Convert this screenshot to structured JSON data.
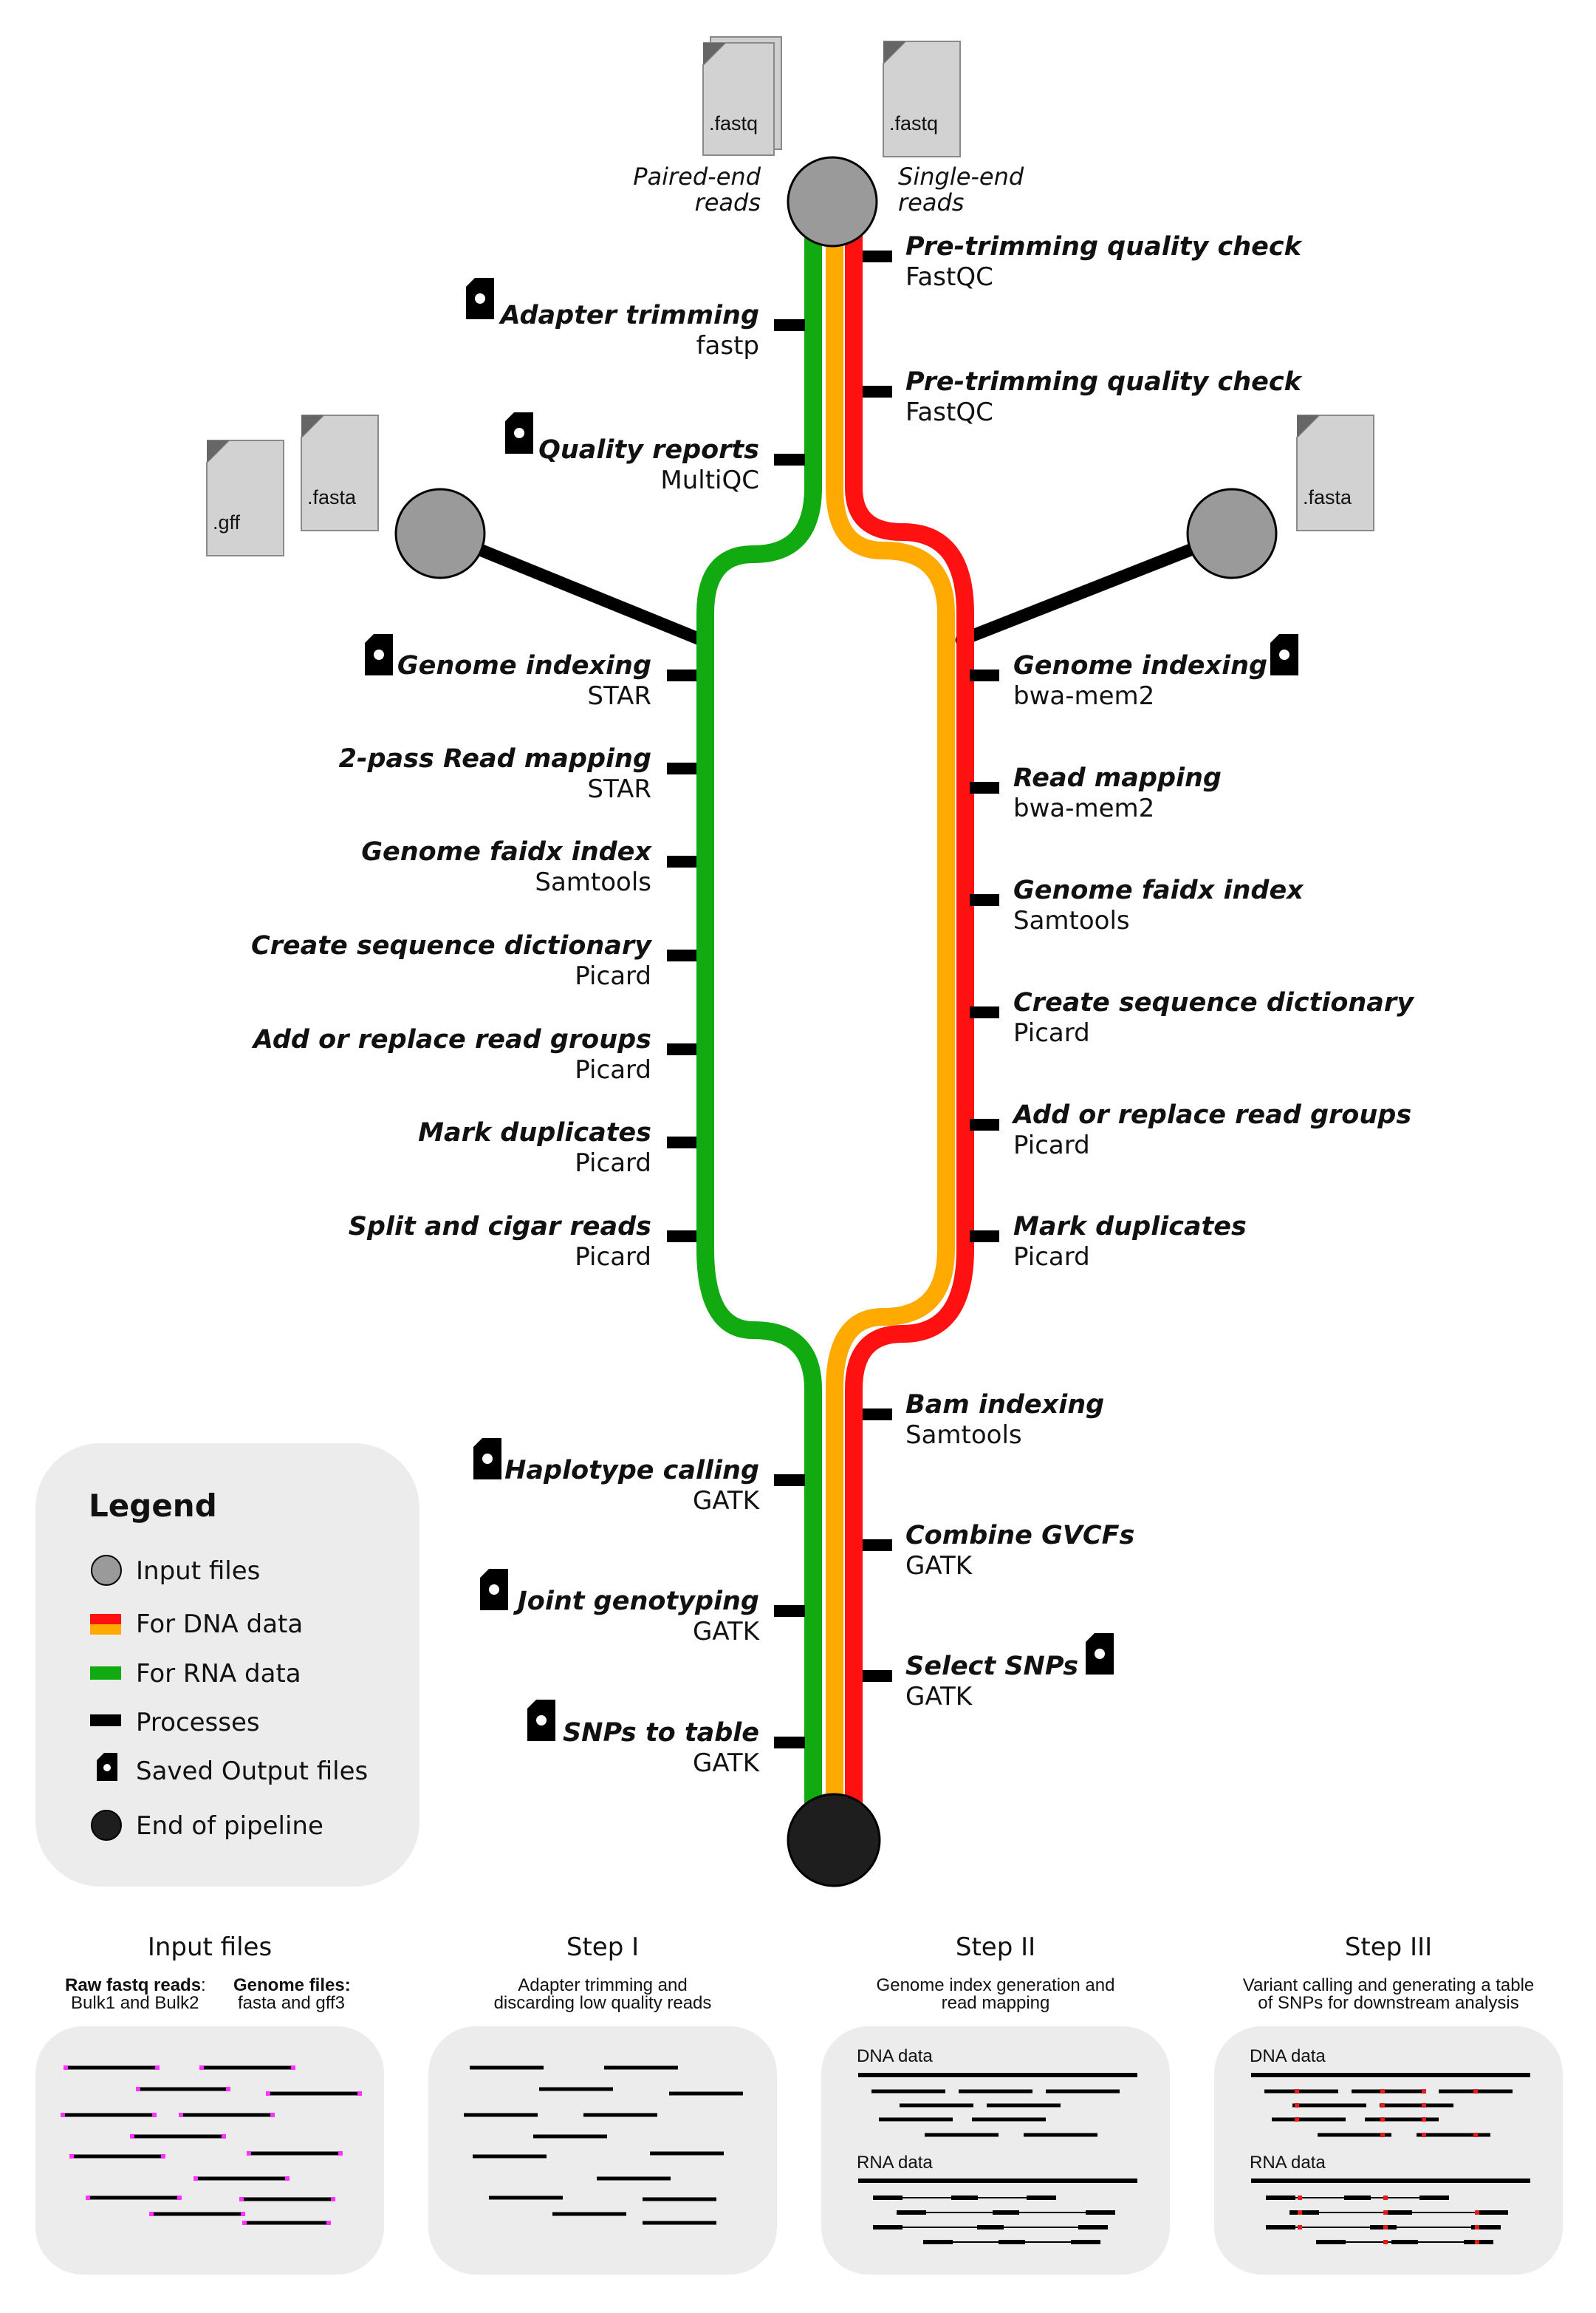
{
  "colors": {
    "dna_outer": "#ff1111",
    "dna_inner": "#ffaa00",
    "rna": "#11aa11",
    "process": "#000000",
    "input_node": "#9a9a9a",
    "end_node": "#1e1e1e",
    "panel_bg": "#ececec"
  },
  "inputs": {
    "paired_file": ".fastq",
    "single_file": ".fastq",
    "paired_label": [
      "Paired-end",
      "reads"
    ],
    "single_label": [
      "Single-end",
      "reads"
    ],
    "gff_file": ".gff",
    "fasta_left_file": ".fasta",
    "fasta_right_file": ".fasta"
  },
  "steps": {
    "trunk_right": [
      {
        "name": "Pre-trimming quality check",
        "tool": "FastQC"
      },
      {
        "name": "Pre-trimming quality check",
        "tool": "FastQC"
      }
    ],
    "trunk_left": [
      {
        "name": "Adapter trimming",
        "tool": "fastp",
        "saved": true
      },
      {
        "name": "Quality reports",
        "tool": "MultiQC",
        "saved": true
      }
    ],
    "rna_branch": [
      {
        "name": "Genome indexing",
        "tool": "STAR",
        "saved": true
      },
      {
        "name": "2-pass Read mapping",
        "tool": "STAR"
      },
      {
        "name": "Genome faidx index",
        "tool": "Samtools"
      },
      {
        "name": "Create sequence dictionary",
        "tool": "Picard"
      },
      {
        "name": "Add or replace read groups",
        "tool": "Picard"
      },
      {
        "name": "Mark duplicates",
        "tool": "Picard"
      },
      {
        "name": "Split and cigar reads",
        "tool": "Picard"
      }
    ],
    "dna_branch": [
      {
        "name": "Genome indexing",
        "tool": "bwa-mem2",
        "saved": true
      },
      {
        "name": "Read mapping",
        "tool": "bwa-mem2"
      },
      {
        "name": "Genome faidx index",
        "tool": "Samtools"
      },
      {
        "name": "Create sequence dictionary",
        "tool": "Picard"
      },
      {
        "name": "Add or replace read groups",
        "tool": "Picard"
      },
      {
        "name": "Mark duplicates",
        "tool": "Picard"
      }
    ],
    "bottom_right": [
      {
        "name": "Bam indexing",
        "tool": "Samtools"
      },
      {
        "name": "Combine GVCFs",
        "tool": "GATK"
      },
      {
        "name": "Select SNPs",
        "tool": "GATK",
        "saved": true
      }
    ],
    "bottom_left": [
      {
        "name": "Haplotype calling",
        "tool": "GATK",
        "saved": true
      },
      {
        "name": "Joint genotyping",
        "tool": "GATK",
        "saved": true
      },
      {
        "name": "SNPs to table",
        "tool": "GATK",
        "saved": true
      }
    ]
  },
  "legend": {
    "title": "Legend",
    "items": [
      {
        "icon": "input-node",
        "label": "Input files"
      },
      {
        "icon": "dna-swatch",
        "label": "For DNA data"
      },
      {
        "icon": "rna-swatch",
        "label": "For RNA data"
      },
      {
        "icon": "process-bar",
        "label": "Processes"
      },
      {
        "icon": "saved-file",
        "label": "Saved Output files"
      },
      {
        "icon": "end-node",
        "label": "End of pipeline"
      }
    ]
  },
  "panels": [
    {
      "title": "Input files",
      "cols": [
        {
          "head": "Raw fastq reads",
          "head_suffix": ":",
          "body": "Bulk1 and Bulk2"
        },
        {
          "head": "Genome files:",
          "head_suffix": "",
          "body": "fasta and gff3"
        }
      ]
    },
    {
      "title": "Step I",
      "sub": [
        "Adapter trimming and",
        "discarding low quality reads"
      ]
    },
    {
      "title": "Step II",
      "sub": [
        "Genome index generation and",
        "read mapping"
      ],
      "dna": "DNA data",
      "rna": "RNA data"
    },
    {
      "title": "Step III",
      "sub": [
        "Variant calling and generating a table",
        "of SNPs for downstream analysis"
      ],
      "dna": "DNA data",
      "rna": "RNA data"
    }
  ]
}
